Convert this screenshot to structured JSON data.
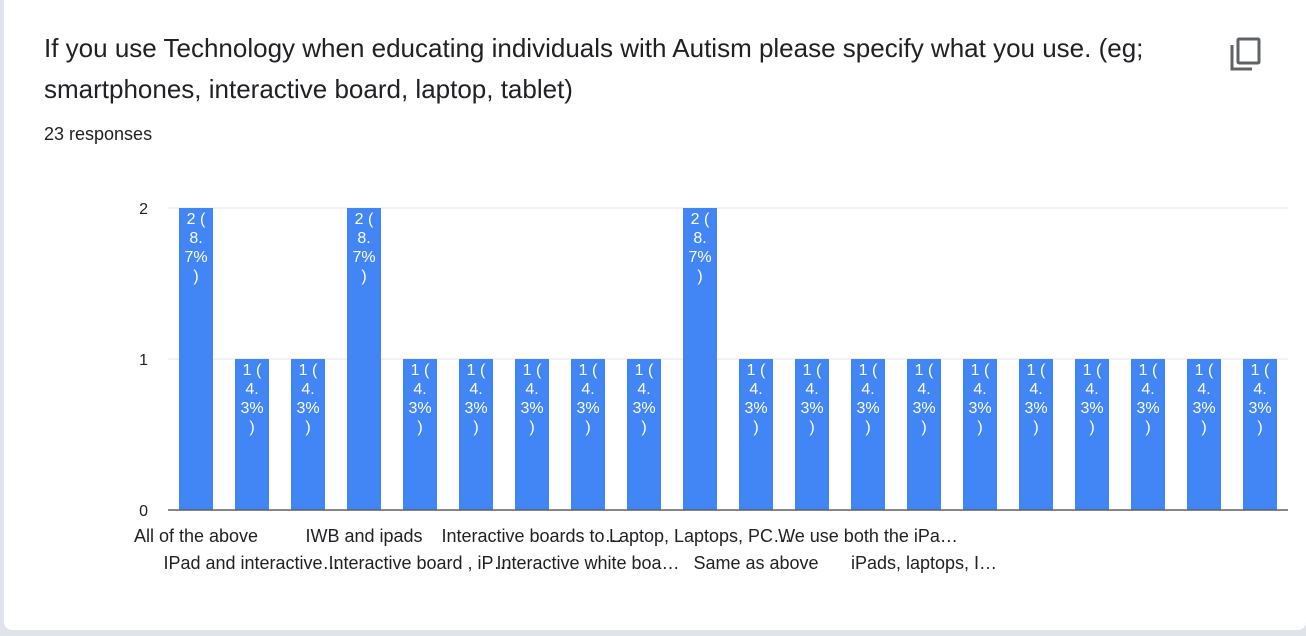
{
  "question": {
    "title": "If you use Technology when educating individuals with Autism please specify what you use. (eg; smartphones, interactive board, laptop, tablet)",
    "responses": "23 responses",
    "copy_icon": "copy-icon"
  },
  "colors": {
    "bar": "#4285f4",
    "grid": "#e6e6e6",
    "axis": "#5f5f5f"
  },
  "chart_data": {
    "type": "bar",
    "title": "",
    "xlabel": "",
    "ylabel": "",
    "ylim": [
      0,
      2
    ],
    "yticks": [
      "0",
      "1",
      "2"
    ],
    "grid": true,
    "categories": [
      "All of the above",
      "IPad and interactive…",
      "",
      "IWB and ipads",
      "Interactive board , iP…",
      "",
      "Interactive boards to…",
      "Interactive white boa…",
      "",
      "Laptop, Laptops, PC…",
      "Same as above",
      "",
      "We use both the iPa…",
      "iPads, laptops, I…",
      "",
      "",
      "",
      "",
      "",
      ""
    ],
    "values": [
      2,
      1,
      1,
      2,
      1,
      1,
      1,
      1,
      1,
      2,
      1,
      1,
      1,
      1,
      1,
      1,
      1,
      1,
      1,
      1
    ],
    "data_labels": [
      [
        "2 (",
        "8.",
        "7%",
        ")"
      ],
      [
        "1 (",
        "4.",
        "3%",
        ")"
      ],
      [
        "1 (",
        "4.",
        "3%",
        ")"
      ],
      [
        "2 (",
        "8.",
        "7%",
        ")"
      ],
      [
        "1 (",
        "4.",
        "3%",
        ")"
      ],
      [
        "1 (",
        "4.",
        "3%",
        ")"
      ],
      [
        "1 (",
        "4.",
        "3%",
        ")"
      ],
      [
        "1 (",
        "4.",
        "3%",
        ")"
      ],
      [
        "1 (",
        "4.",
        "3%",
        ")"
      ],
      [
        "2 (",
        "8.",
        "7%",
        ")"
      ],
      [
        "1 (",
        "4.",
        "3%",
        ")"
      ],
      [
        "1 (",
        "4.",
        "3%",
        ")"
      ],
      [
        "1 (",
        "4.",
        "3%",
        ")"
      ],
      [
        "1 (",
        "4.",
        "3%",
        ")"
      ],
      [
        "1 (",
        "4.",
        "3%",
        ")"
      ],
      [
        "1 (",
        "4.",
        "3%",
        ")"
      ],
      [
        "1 (",
        "4.",
        "3%",
        ")"
      ],
      [
        "1 (",
        "4.",
        "3%",
        ")"
      ],
      [
        "1 (",
        "4.",
        "3%",
        ")"
      ],
      [
        "1 (",
        "4.",
        "3%",
        ")"
      ]
    ]
  }
}
